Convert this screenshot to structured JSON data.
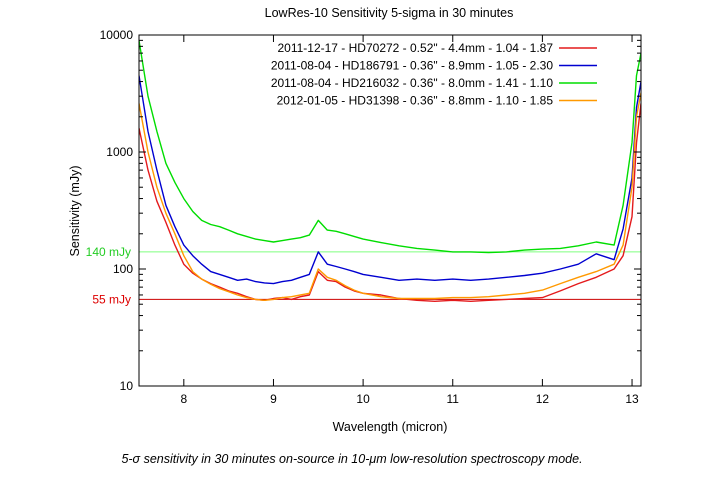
{
  "chart_data": {
    "type": "line",
    "title": "LowRes-10 Sensitivity 5-sigma in 30 minutes",
    "xlabel": "Wavelength (micron)",
    "ylabel": "Sensitivity (mJy)",
    "xlim": [
      7.5,
      13.1
    ],
    "ylim": [
      10,
      10000
    ],
    "yscale": "log",
    "x_ticks": [
      8,
      9,
      10,
      11,
      12,
      13
    ],
    "y_ticks": [
      10,
      100,
      1000,
      10000
    ],
    "grid": false,
    "legend_position": "top-right",
    "x": [
      7.5,
      7.6,
      7.7,
      7.8,
      7.9,
      8.0,
      8.1,
      8.2,
      8.3,
      8.4,
      8.5,
      8.6,
      8.7,
      8.8,
      8.9,
      9.0,
      9.1,
      9.2,
      9.3,
      9.4,
      9.5,
      9.6,
      9.7,
      9.8,
      9.9,
      10.0,
      10.2,
      10.4,
      10.6,
      10.8,
      11.0,
      11.2,
      11.4,
      11.6,
      11.8,
      12.0,
      12.2,
      12.4,
      12.6,
      12.8,
      12.9,
      13.0,
      13.05,
      13.1
    ],
    "series": [
      {
        "name": "2011-12-17 - HD70272  - 0.52\" - 4.4mm - 1.04 - 1.87",
        "color": "#e41a1c",
        "values": [
          1600,
          700,
          380,
          250,
          160,
          110,
          92,
          82,
          75,
          70,
          65,
          62,
          58,
          55,
          54,
          56,
          57,
          55,
          58,
          60,
          95,
          80,
          78,
          70,
          65,
          62,
          60,
          56,
          54,
          53,
          54,
          53,
          54,
          55,
          56,
          57,
          65,
          75,
          85,
          100,
          130,
          280,
          1200,
          2600
        ]
      },
      {
        "name": "2011-08-04 - HD186791 - 0.36\" - 8.9mm - 1.05 - 2.30",
        "color": "#0000d0",
        "values": [
          4500,
          1500,
          700,
          350,
          230,
          160,
          130,
          110,
          95,
          90,
          85,
          80,
          82,
          78,
          76,
          75,
          78,
          80,
          85,
          90,
          140,
          110,
          105,
          100,
          95,
          90,
          85,
          80,
          82,
          80,
          82,
          80,
          82,
          85,
          88,
          92,
          100,
          110,
          135,
          120,
          220,
          600,
          2400,
          4000
        ]
      },
      {
        "name": "2011-08-04 - HD216032 - 0.36\" - 8.0mm - 1.41 - 1.10",
        "color": "#00dd00",
        "values": [
          9000,
          3000,
          1500,
          800,
          550,
          400,
          310,
          260,
          240,
          230,
          215,
          200,
          190,
          180,
          175,
          170,
          175,
          180,
          185,
          195,
          260,
          215,
          210,
          200,
          190,
          180,
          168,
          158,
          150,
          145,
          140,
          140,
          138,
          140,
          145,
          148,
          150,
          158,
          170,
          160,
          350,
          1200,
          4500,
          7000
        ]
      },
      {
        "name": "2012-01-05 - HD31398  - 0.36\" - 8.8mm - 1.10 - 1.85",
        "color": "#ff9900",
        "values": [
          2600,
          1000,
          500,
          300,
          200,
          130,
          95,
          82,
          74,
          68,
          64,
          60,
          57,
          55,
          54,
          55,
          57,
          58,
          60,
          62,
          100,
          85,
          80,
          72,
          66,
          62,
          58,
          56,
          56,
          56,
          57,
          57,
          58,
          60,
          62,
          66,
          75,
          85,
          95,
          110,
          160,
          500,
          2000,
          3200
        ]
      }
    ],
    "reference_lines": [
      {
        "label": "140 mJy",
        "value": 140,
        "color": "#7fff7f",
        "label_color": "#22cc22"
      },
      {
        "label": "55 mJy",
        "value": 55,
        "color": "#cc0000",
        "label_color": "#dd0000"
      }
    ]
  },
  "caption": "5-σ sensitivity in 30 minutes on-source in 10-μm low-resolution spectroscopy mode."
}
